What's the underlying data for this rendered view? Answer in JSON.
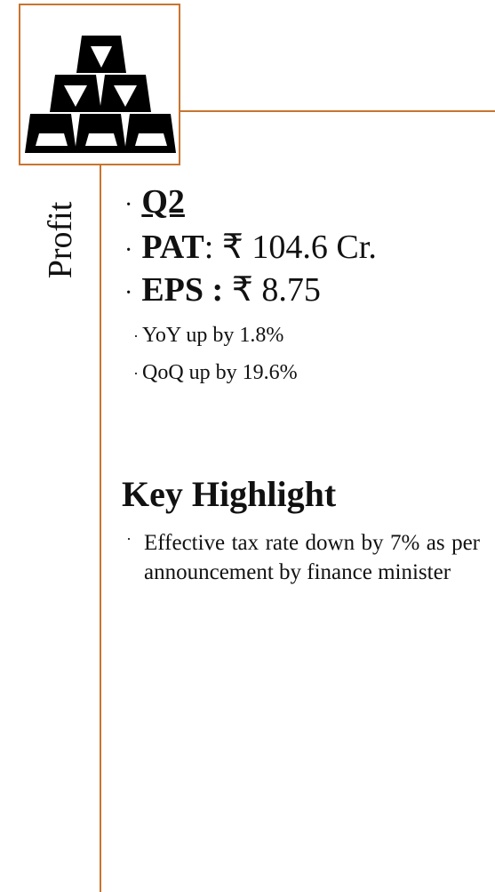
{
  "title": "Profit",
  "bullets": [
    {
      "label": "Q2"
    },
    {
      "label": "PAT",
      "text": ": ₹ 104.6 Cr."
    },
    {
      "label": "EPS :",
      "text": " ₹ 8.75"
    }
  ],
  "sub_bullets": [
    "YoY up by 1.8%",
    "QoQ up by 19.6%"
  ],
  "highlight": {
    "heading": "Key Highlight",
    "text": "Effective tax rate down by 7% as per announcement by finance minister"
  }
}
